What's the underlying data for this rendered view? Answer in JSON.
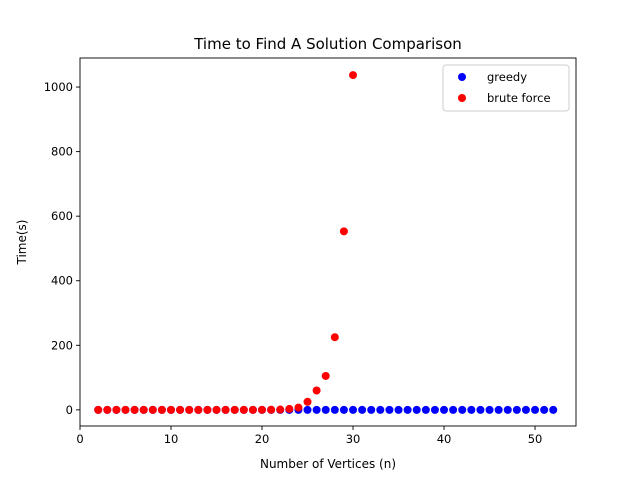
{
  "chart_data": {
    "type": "scatter",
    "title": "Time to Find A Solution Comparison",
    "xlabel": "Number of Vertices (n)",
    "ylabel": "Time(s)",
    "xlim": [
      0,
      54.5
    ],
    "ylim": [
      -50,
      1090
    ],
    "xticks": [
      0,
      10,
      20,
      30,
      40,
      50
    ],
    "yticks": [
      0,
      200,
      400,
      600,
      800,
      1000
    ],
    "grid": false,
    "legend_position": "top-right",
    "series": [
      {
        "name": "greedy",
        "color": "#0000ff",
        "x": [
          2,
          3,
          4,
          5,
          6,
          7,
          8,
          9,
          10,
          11,
          12,
          13,
          14,
          15,
          16,
          17,
          18,
          19,
          20,
          21,
          22,
          23,
          24,
          25,
          26,
          27,
          28,
          29,
          30,
          31,
          32,
          33,
          34,
          35,
          36,
          37,
          38,
          39,
          40,
          41,
          42,
          43,
          44,
          45,
          46,
          47,
          48,
          49,
          50,
          51,
          52
        ],
        "y": [
          0,
          0,
          0,
          0,
          0,
          0,
          0,
          0,
          0,
          0,
          0,
          0,
          0,
          0,
          0,
          0,
          0,
          0,
          0,
          0,
          0,
          0,
          0,
          0,
          0,
          0,
          0,
          0,
          0,
          0,
          0,
          0,
          0,
          0,
          0,
          0,
          0,
          0,
          0,
          0,
          0,
          0,
          0,
          0,
          0,
          0,
          0,
          0,
          0,
          0,
          0
        ]
      },
      {
        "name": "brute force",
        "color": "#ff0000",
        "x": [
          2,
          3,
          4,
          5,
          6,
          7,
          8,
          9,
          10,
          11,
          12,
          13,
          14,
          15,
          16,
          17,
          18,
          19,
          20,
          21,
          22,
          23,
          24,
          25,
          26,
          27,
          28,
          29,
          30
        ],
        "y": [
          0,
          0,
          0,
          0,
          0,
          0,
          0,
          0,
          0,
          0,
          0,
          0,
          0,
          0,
          0,
          0,
          0,
          0,
          0.1,
          0.3,
          1,
          3,
          7,
          25,
          60,
          105,
          225,
          553,
          1037
        ]
      }
    ]
  }
}
